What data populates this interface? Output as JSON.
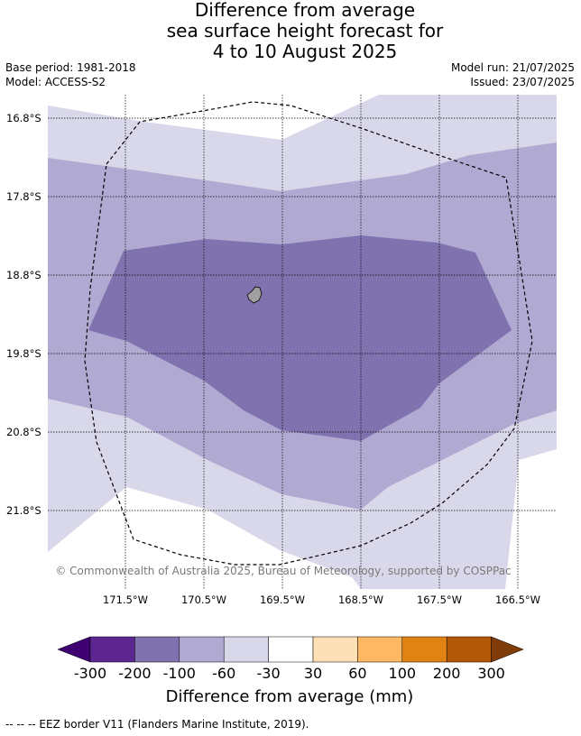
{
  "title": {
    "line1": "Difference from average",
    "line2": "sea surface height forecast for",
    "line3": "4 to 10 August 2025"
  },
  "meta": {
    "base_period": "Base period: 1981-2018",
    "model": "Model: ACCESS-S2",
    "model_run": "Model run: 21/07/2025",
    "issued": "Issued: 23/07/2025"
  },
  "map": {
    "lat_labels": [
      "16.8°S",
      "17.8°S",
      "18.8°S",
      "19.8°S",
      "20.8°S",
      "21.8°S"
    ],
    "lon_labels": [
      "171.5°W",
      "170.5°W",
      "169.5°W",
      "168.5°W",
      "167.5°W",
      "166.5°W"
    ],
    "copyright": "© Commonwealth of Australia 2025, Bureau of Meteorology, supported by COSPPac",
    "colors": {
      "band_-30_0": "#d8d8ea",
      "band_-60_-30": "#b0aad2",
      "band_-100_-60": "#8072ae",
      "land": "#a0a0a0",
      "eez_line": "#000000"
    }
  },
  "colorbar": {
    "ticks": [
      "-300",
      "-200",
      "-100",
      "-60",
      "-30",
      "30",
      "60",
      "100",
      "200",
      "300"
    ],
    "colors": [
      "#3f0071",
      "#5c2590",
      "#8072ae",
      "#b0aad2",
      "#d8d8ea",
      "#ffffff",
      "#fee0b6",
      "#fdb863",
      "#e08214",
      "#b35806",
      "#7f3b08"
    ],
    "title": "Difference from average (mm)"
  },
  "footnote": "--  --  -- EEZ border V11 (Flanders Marine Institute, 2019)."
}
